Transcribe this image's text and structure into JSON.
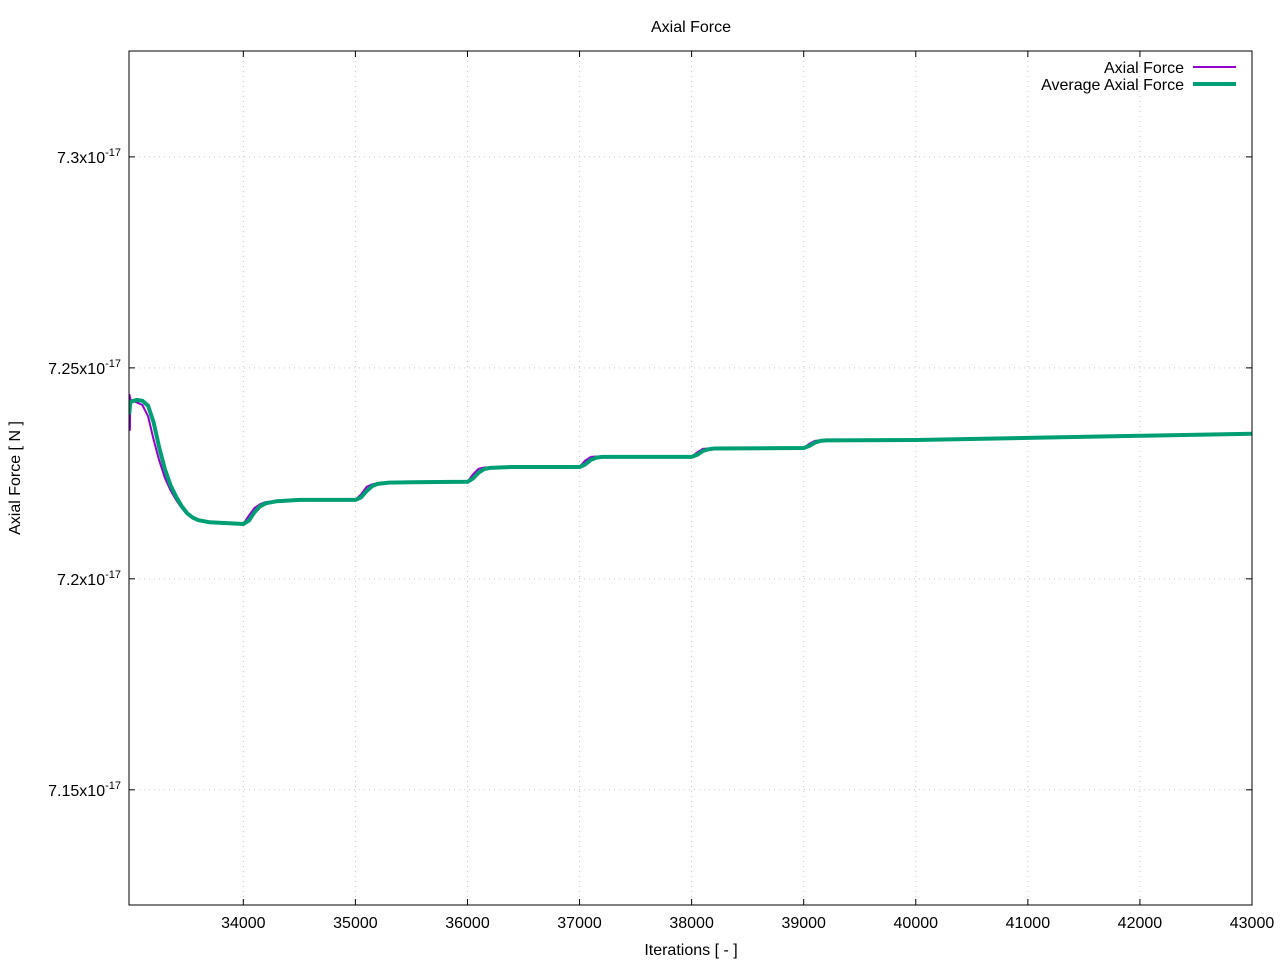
{
  "chart_data": {
    "type": "line",
    "title": "Axial Force",
    "xlabel": "Iterations [ - ]",
    "ylabel": "Axial Force [ N ]",
    "xlim": [
      32980,
      43000
    ],
    "ylim": [
      7.1227e-17,
      7.3251e-17
    ],
    "xticks": [
      34000,
      35000,
      36000,
      37000,
      38000,
      39000,
      40000,
      41000,
      42000,
      43000
    ],
    "xtick_labels": [
      "34000",
      "35000",
      "36000",
      "37000",
      "38000",
      "39000",
      "40000",
      "41000",
      "42000",
      "43000"
    ],
    "yticks": [
      7.15e-17,
      7.2e-17,
      7.25e-17,
      7.3e-17
    ],
    "ytick_labels": [
      {
        "mantissa": "7.15x10",
        "exp": "-17"
      },
      {
        "mantissa": "7.2x10",
        "exp": "-17"
      },
      {
        "mantissa": "7.25x10",
        "exp": "-17"
      },
      {
        "mantissa": "7.3x10",
        "exp": "-17"
      }
    ],
    "grid": true,
    "legend_position": "top-right",
    "series": [
      {
        "name": "Axial Force",
        "color": "#9400d3",
        "x": [
          32982,
          32985,
          32988,
          32991,
          32995,
          33000,
          33050,
          33100,
          33150,
          33200,
          33250,
          33300,
          33350,
          33400,
          33450,
          33500,
          33600,
          33700,
          33850,
          34000,
          34050,
          34100,
          34150,
          34200,
          34350,
          34500,
          35000,
          35050,
          35100,
          35150,
          35200,
          35400,
          36000,
          36050,
          36100,
          36150,
          36300,
          37000,
          37050,
          37100,
          37150,
          38000,
          38050,
          38100,
          38150,
          39000,
          39050,
          39100,
          39150,
          40000,
          41000,
          42000,
          43000
        ],
        "y": [
          7.238,
          7.2436,
          7.2353,
          7.243,
          7.241,
          7.2424,
          7.2418,
          7.2412,
          7.2385,
          7.2329,
          7.228,
          7.2239,
          7.221,
          7.2187,
          7.2168,
          7.2152,
          7.214,
          7.2135,
          7.2132,
          7.213,
          7.215,
          7.2168,
          7.2177,
          7.2182,
          7.2186,
          7.2187,
          7.2187,
          7.22,
          7.2218,
          7.2224,
          7.2227,
          7.2229,
          7.223,
          7.2248,
          7.2261,
          7.2264,
          7.2265,
          7.2265,
          7.228,
          7.2289,
          7.229,
          7.2289,
          7.23,
          7.2308,
          7.2309,
          7.231,
          7.232,
          7.2327,
          7.2328,
          7.2329,
          7.2334,
          7.2339,
          7.2344
        ]
      },
      {
        "name": "Average Axial Force",
        "color": "#009e73",
        "x": [
          32982,
          32990,
          33000,
          33050,
          33100,
          33150,
          33200,
          33250,
          33300,
          33350,
          33400,
          33450,
          33500,
          33550,
          33600,
          33700,
          33850,
          34000,
          34050,
          34100,
          34150,
          34200,
          34300,
          34500,
          35000,
          35050,
          35100,
          35150,
          35200,
          35300,
          35500,
          36000,
          36050,
          36100,
          36150,
          36200,
          36400,
          37000,
          37050,
          37100,
          37150,
          37200,
          38000,
          38050,
          38100,
          38150,
          38200,
          39000,
          39050,
          39100,
          39150,
          39200,
          40000,
          41000,
          42000,
          43000
        ],
        "y": [
          7.239,
          7.2415,
          7.242,
          7.2424,
          7.2422,
          7.241,
          7.237,
          7.231,
          7.226,
          7.2222,
          7.2195,
          7.2172,
          7.2155,
          7.2145,
          7.2139,
          7.2134,
          7.2132,
          7.213,
          7.2138,
          7.2158,
          7.2172,
          7.2179,
          7.2184,
          7.2187,
          7.2187,
          7.2193,
          7.2208,
          7.222,
          7.2225,
          7.2228,
          7.2229,
          7.223,
          7.2238,
          7.2252,
          7.226,
          7.2263,
          7.2265,
          7.2265,
          7.2271,
          7.2282,
          7.2287,
          7.2289,
          7.2289,
          7.2294,
          7.2303,
          7.2307,
          7.2309,
          7.231,
          7.2315,
          7.2323,
          7.2327,
          7.2328,
          7.2329,
          7.2334,
          7.2339,
          7.2344
        ]
      }
    ]
  }
}
